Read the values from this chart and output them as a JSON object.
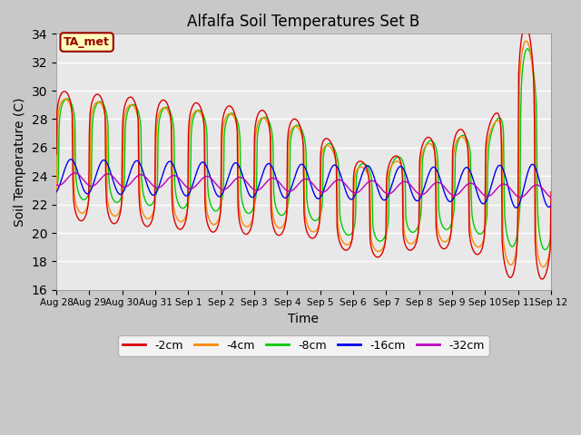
{
  "title": "Alfalfa Soil Temperatures Set B",
  "xlabel": "Time",
  "ylabel": "Soil Temperature (C)",
  "ylim": [
    16,
    34
  ],
  "yticks": [
    16,
    18,
    20,
    22,
    24,
    26,
    28,
    30,
    32,
    34
  ],
  "fig_bg_color": "#c8c8c8",
  "plot_bg_color": "#e8e8e8",
  "grid_color": "#ffffff",
  "line_colors": {
    "-2cm": "#dd0000",
    "-4cm": "#ff8800",
    "-8cm": "#00cc00",
    "-16cm": "#0000ee",
    "-32cm": "#bb00bb"
  },
  "annotation_text": "TA_met",
  "annotation_color": "#990000",
  "annotation_bg": "#ffffbb",
  "tick_labels": [
    "Aug 28",
    "Aug 29",
    "Aug 30",
    "Aug 31",
    "Sep 1",
    "Sep 2",
    "Sep 3",
    "Sep 4",
    "Sep 5",
    "Sep 6",
    "Sep 7",
    "Sep 8",
    "Sep 9",
    "Sep 10",
    "Sep 11",
    "Sep 12"
  ],
  "n_days": 15,
  "pts_per_day": 48
}
